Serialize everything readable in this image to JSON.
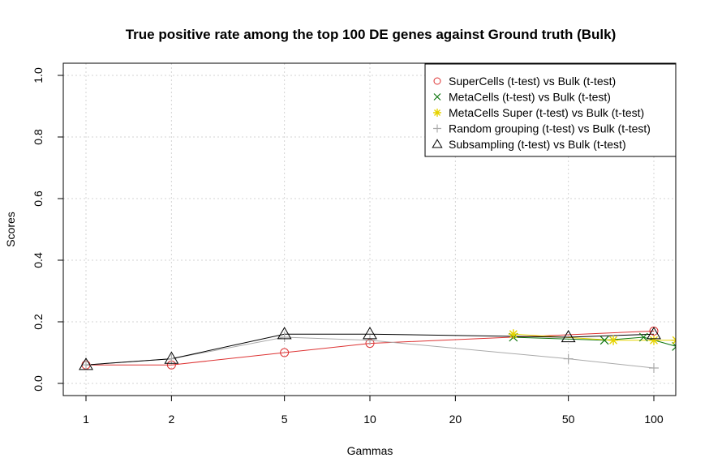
{
  "chart_data": {
    "type": "line",
    "title": "True positive rate among the top 100 DE genes against Ground truth (Bulk)",
    "xlabel": "Gammas",
    "ylabel": "Scores",
    "x_scale": "log",
    "xlim": [
      1,
      120
    ],
    "ylim": [
      0,
      1
    ],
    "x_ticks": [
      1,
      2,
      5,
      10,
      20,
      50,
      100
    ],
    "x_tick_labels": [
      "1",
      "2",
      "5",
      "10",
      "20",
      "50",
      "100"
    ],
    "y_ticks": [
      0,
      0.2,
      0.4,
      0.6,
      0.8,
      1
    ],
    "y_tick_labels": [
      "0.0",
      "0.2",
      "0.4",
      "0.6",
      "0.8",
      "1.0"
    ],
    "grid": true,
    "legend_position": "top-right",
    "series": [
      {
        "name": "SuperCells (t-test) vs Bulk (t-test)",
        "color": "#dd3333",
        "marker": "circle",
        "x": [
          1,
          2,
          5,
          10,
          100
        ],
        "y": [
          0.06,
          0.06,
          0.1,
          0.13,
          0.17
        ]
      },
      {
        "name": "MetaCells (t-test) vs Bulk (t-test)",
        "color": "#117711",
        "marker": "x",
        "x": [
          32,
          67,
          92,
          120
        ],
        "y": [
          0.15,
          0.14,
          0.15,
          0.12
        ]
      },
      {
        "name": "MetaCells Super (t-test) vs Bulk (t-test)",
        "color": "#e6d300",
        "marker": "asterisk",
        "x": [
          32,
          72,
          100,
          120
        ],
        "y": [
          0.16,
          0.14,
          0.14,
          0.14
        ]
      },
      {
        "name": "Random grouping (t-test) vs Bulk (t-test)",
        "color": "#aaaaaa",
        "marker": "plus",
        "x": [
          1,
          2,
          5,
          10,
          50,
          100
        ],
        "y": [
          0.06,
          0.08,
          0.15,
          0.14,
          0.08,
          0.05
        ]
      },
      {
        "name": "Subsampling (t-test) vs Bulk (t-test)",
        "color": "#000000",
        "marker": "triangle",
        "x": [
          1,
          2,
          5,
          10,
          50,
          100
        ],
        "y": [
          0.06,
          0.08,
          0.16,
          0.16,
          0.15,
          0.16
        ]
      }
    ]
  }
}
